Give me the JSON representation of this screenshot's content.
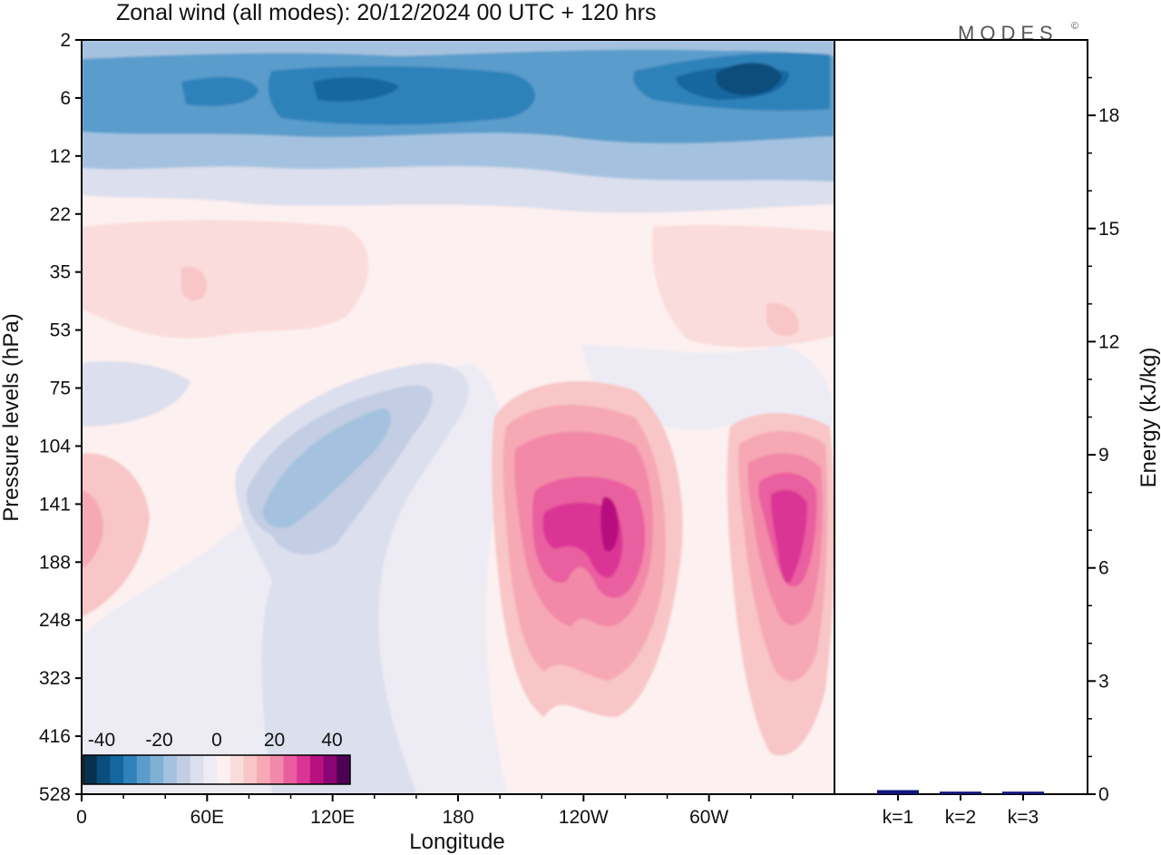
{
  "title": "Zonal wind (all modes):  20/12/2024  00 UTC  + 120 hrs",
  "brand": "MODES",
  "brand_mark": "©",
  "chart_data": [
    {
      "type": "heatmap",
      "xlabel": "Longitude",
      "ylabel": "Pressure levels (hPa)",
      "x_ticks": [
        "0",
        "60E",
        "120E",
        "180",
        "120W",
        "60W"
      ],
      "y_ticks": [
        "2",
        "6",
        "12",
        "22",
        "35",
        "53",
        "75",
        "104",
        "141",
        "188",
        "248",
        "323",
        "416",
        "528"
      ],
      "colorbar": {
        "tick_labels": [
          "-40",
          "-20",
          "0",
          "20",
          "40"
        ],
        "colors": [
          "#08314e",
          "#0a4d7c",
          "#1366a0",
          "#2f82ba",
          "#5a9ccb",
          "#7fb0d6",
          "#a4c2df",
          "#c3cde4",
          "#dcdfed",
          "#edecf5",
          "#fdf0f0",
          "#fbdcdc",
          "#f8c6c6",
          "#f6a8b4",
          "#f289a8",
          "#ea5e9f",
          "#da3594",
          "#b8107f",
          "#8a0474",
          "#4d0155"
        ]
      },
      "contour_regions": [
        {
          "name": "upper-easterly-band",
          "level": -20,
          "lon": [
            0,
            360
          ],
          "p": [
            2,
            14
          ]
        },
        {
          "name": "upper-easterly-core-a",
          "level": -30,
          "lon": [
            95,
            130
          ],
          "p": [
            4,
            8
          ]
        },
        {
          "name": "upper-easterly-core-b",
          "level": -40,
          "lon": [
            300,
            340
          ],
          "p": [
            3,
            7
          ]
        },
        {
          "name": "stratospheric-westerly",
          "level": 5,
          "lon": [
            0,
            360
          ],
          "p": [
            25,
            60
          ]
        },
        {
          "name": "westerly-jet-a",
          "level": 35,
          "lon": [
            200,
            270
          ],
          "p": [
            90,
            330
          ]
        },
        {
          "name": "westerly-jet-a-core",
          "level": 40,
          "lon": [
            240,
            265
          ],
          "p": [
            125,
            175
          ]
        },
        {
          "name": "westerly-jet-b",
          "level": 30,
          "lon": [
            315,
            355
          ],
          "p": [
            100,
            330
          ]
        },
        {
          "name": "easterly-trough",
          "level": -15,
          "lon": [
            85,
            165
          ],
          "p": [
            75,
            200
          ]
        }
      ]
    },
    {
      "type": "bar",
      "ylabel": "Energy (kJ/kg)",
      "categories": [
        "k=1",
        "k=2",
        "k=3"
      ],
      "values": [
        0.06,
        0.02,
        0.02
      ],
      "ylim": [
        0,
        20
      ],
      "y_ticks": [
        0,
        3,
        6,
        9,
        12,
        15,
        18
      ],
      "bar_color": "#10167a"
    }
  ]
}
